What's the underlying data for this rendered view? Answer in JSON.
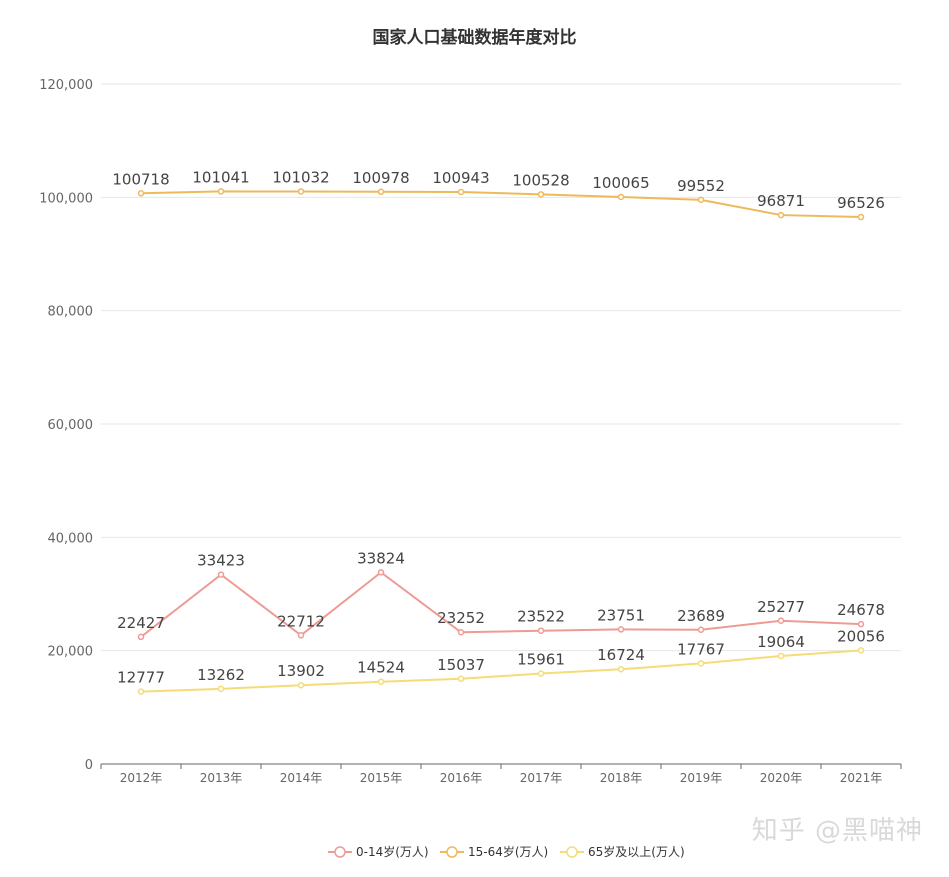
{
  "chart_data": {
    "type": "line",
    "title": "国家人口基础数据年度对比",
    "categories": [
      "2012年",
      "2013年",
      "2014年",
      "2015年",
      "2016年",
      "2017年",
      "2018年",
      "2019年",
      "2020年",
      "2021年"
    ],
    "ylim": [
      0,
      120000
    ],
    "yticks": [
      "0",
      "20,000",
      "40,000",
      "60,000",
      "80,000",
      "100,000",
      "120,000"
    ],
    "ytick_values": [
      0,
      20000,
      40000,
      60000,
      80000,
      100000,
      120000
    ],
    "grid": true,
    "legend_position": "bottom-center",
    "series": [
      {
        "name": "0-14岁(万人)",
        "color": "#ee9b94",
        "values": [
          22427,
          33423,
          22712,
          33824,
          23252,
          23522,
          23751,
          23689,
          25277,
          24678
        ]
      },
      {
        "name": "15-64岁(万人)",
        "color": "#eeb95b",
        "values": [
          100718,
          101041,
          101032,
          100978,
          100943,
          100528,
          100065,
          99552,
          96871,
          96526
        ]
      },
      {
        "name": "65岁及以上(万人)",
        "color": "#f4dc77",
        "values": [
          12777,
          13262,
          13902,
          14524,
          15037,
          15961,
          16724,
          17767,
          19064,
          20056
        ]
      }
    ]
  },
  "watermark": "知乎 @黑喵神"
}
